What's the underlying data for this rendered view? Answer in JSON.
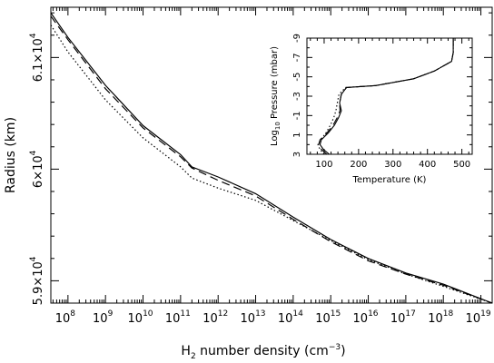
{
  "chart_data": [
    {
      "type": "line",
      "xlabel": "H",
      "xlabel_sub": "2",
      "xlabel_rest": " number density (cm",
      "xlabel_sup": "−3",
      "xlabel_end": ")",
      "ylabel": "Radius (km)",
      "x_scale": "log",
      "xlim": [
        35000000.0,
        2e+19
      ],
      "ylim": [
        58800,
        61450
      ],
      "x_ticks": [
        {
          "base": "10",
          "exp": "8",
          "value": 100000000.0
        },
        {
          "base": "10",
          "exp": "9",
          "value": 1000000000.0
        },
        {
          "base": "10",
          "exp": "10",
          "value": 10000000000.0
        },
        {
          "base": "10",
          "exp": "11",
          "value": 100000000000.0
        },
        {
          "base": "10",
          "exp": "12",
          "value": 1000000000000.0
        },
        {
          "base": "10",
          "exp": "13",
          "value": 10000000000000.0
        },
        {
          "base": "10",
          "exp": "14",
          "value": 100000000000000.0
        },
        {
          "base": "10",
          "exp": "15",
          "value": 1000000000000000.0
        },
        {
          "base": "10",
          "exp": "16",
          "value": 1e+16
        },
        {
          "base": "10",
          "exp": "17",
          "value": 1e+17
        },
        {
          "base": "10",
          "exp": "18",
          "value": 1e+18
        },
        {
          "base": "10",
          "exp": "19",
          "value": 1e+19
        }
      ],
      "y_ticks": [
        {
          "mant": "5.9×10",
          "exp": "4",
          "value": 59000
        },
        {
          "mant": "6×10",
          "exp": "4",
          "value": 60000
        },
        {
          "mant": "6.1×10",
          "exp": "4",
          "value": 61000
        }
      ],
      "series": [
        {
          "style": "solid",
          "x": [
            35000000.0,
            100000000.0,
            1000000000.0,
            10000000000.0,
            100000000000.0,
            200000000000.0,
            1000000000000.0,
            10000000000000.0,
            100000000000000.0,
            1000000000000000.0,
            1e+16,
            1e+17,
            1e+18,
            2e+19
          ],
          "y": [
            61400,
            61180,
            60750,
            60390,
            60130,
            60020,
            59930,
            59780,
            59570,
            59370,
            59200,
            59070,
            58970,
            58800
          ]
        },
        {
          "style": "dashed",
          "x": [
            35000000.0,
            100000000.0,
            1000000000.0,
            10000000000.0,
            100000000000.0,
            200000000000.0,
            1000000000000.0,
            10000000000000.0,
            100000000000000.0,
            1000000000000000.0,
            1e+16,
            1e+17,
            1e+18,
            2e+19
          ],
          "y": [
            61370,
            61160,
            60720,
            60370,
            60110,
            60010,
            59900,
            59760,
            59550,
            59350,
            59180,
            59060,
            58960,
            58800
          ]
        },
        {
          "style": "dotted",
          "x": [
            35000000.0,
            100000000.0,
            1000000000.0,
            10000000000.0,
            100000000000.0,
            200000000000.0,
            1000000000000.0,
            10000000000000.0,
            100000000000000.0,
            1000000000000000.0,
            1e+16,
            1e+17,
            1e+18,
            2e+19
          ],
          "y": [
            61290,
            61050,
            60620,
            60280,
            60020,
            59920,
            59830,
            59720,
            59540,
            59360,
            59190,
            59060,
            58950,
            58800
          ]
        }
      ]
    },
    {
      "type": "line",
      "xlabel": "Temperature (K)",
      "ylabel_pre": "Log",
      "ylabel_sub": "10",
      "ylabel_rest": " Pressure (mbar)",
      "xlim": [
        50,
        530
      ],
      "ylim": [
        3,
        -9
      ],
      "x_ticks": [
        "100",
        "200",
        "300",
        "400",
        "500"
      ],
      "y_ticks": [
        "-9",
        "-7",
        "-5",
        "-3",
        "-1",
        "1",
        "3"
      ],
      "series": [
        {
          "style": "solid",
          "x": [
            115,
            98,
            88,
            92,
            112,
            130,
            142,
            150,
            145,
            150,
            165,
            250,
            360,
            420,
            470,
            475,
            475
          ],
          "y": [
            3,
            2.5,
            2,
            1.5,
            0.8,
            0,
            -0.8,
            -1.5,
            -2.3,
            -3.2,
            -3.9,
            -4.1,
            -4.8,
            -5.6,
            -6.6,
            -7.5,
            -9
          ]
        },
        {
          "style": "dashed",
          "x": [
            108,
            92,
            84,
            88,
            108,
            126,
            138,
            146,
            145,
            150,
            165,
            250,
            360,
            420,
            470,
            475,
            475
          ],
          "y": [
            3,
            2.5,
            2,
            1.5,
            0.8,
            0,
            -0.8,
            -1.5,
            -2.3,
            -3.2,
            -3.9,
            -4.1,
            -4.8,
            -5.6,
            -6.6,
            -7.5,
            -9
          ]
        },
        {
          "style": "dotted",
          "x": [
            100,
            88,
            82,
            90,
            105,
            118,
            128,
            134,
            138,
            143,
            162,
            250,
            360,
            420,
            470,
            475,
            475
          ],
          "y": [
            3,
            2.5,
            2,
            1.5,
            0.8,
            0,
            -0.8,
            -1.5,
            -2.3,
            -3.2,
            -3.9,
            -4.1,
            -4.8,
            -5.6,
            -6.6,
            -7.5,
            -9
          ]
        }
      ]
    }
  ]
}
